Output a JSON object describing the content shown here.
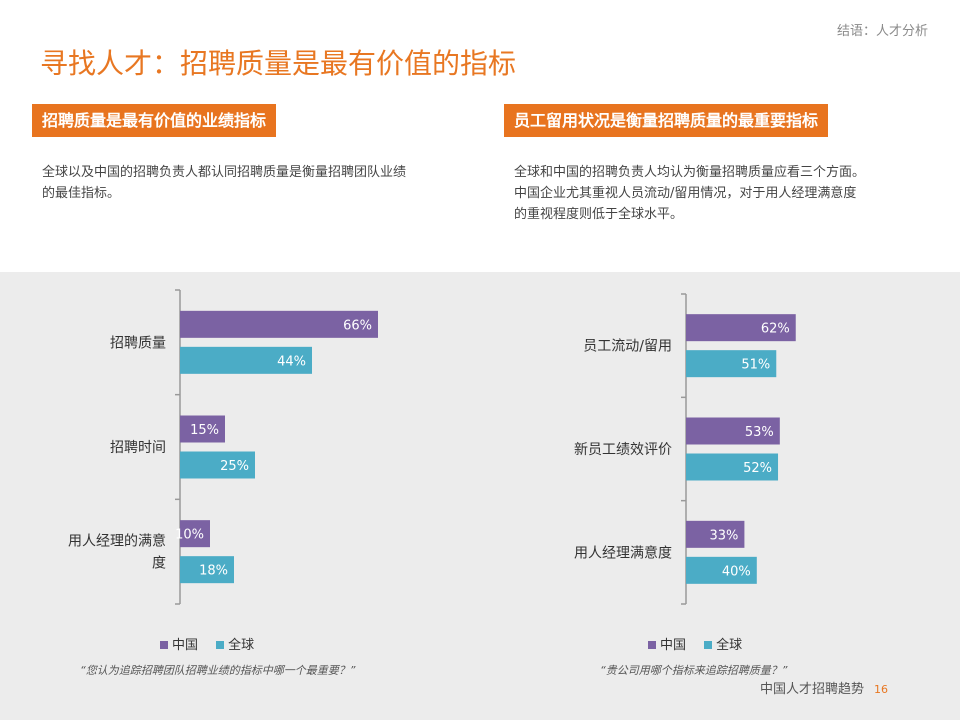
{
  "header": {
    "breadcrumb": "结语：人才分析",
    "title": "寻找人才：招聘质量是最有价值的指标"
  },
  "left": {
    "section_title": "招聘质量是最有价值的业绩指标",
    "desc_lines": [
      "全球以及中国的招聘负责人都认同招聘质量是衡量招聘团队业绩",
      "的最佳指标。"
    ],
    "note": "“您认为追踪招聘团队招聘业绩的指标中哪一个最重要？”"
  },
  "right": {
    "section_title": "员工留用状况是衡量招聘质量的最重要指标",
    "desc_lines": [
      "全球和中国的招聘负责人均认为衡量招聘质量应看三个方面。",
      "中国企业尤其重视人员流动/留用情况，对于用人经理满意度",
      "的重视程度则低于全球水平。"
    ],
    "note": "“贵公司用哪个指标来追踪招聘质量？”"
  },
  "legend": {
    "china": "中国",
    "global": "全球"
  },
  "colors": {
    "china": "#7b62a3",
    "global": "#4bacc6",
    "accent": "#e8741f"
  },
  "footer": {
    "text": "中国人才招聘趋势",
    "page": "16"
  },
  "chart_data": [
    {
      "type": "bar",
      "orientation": "horizontal",
      "categories": [
        [
          "招聘质量"
        ],
        [
          "招聘时间"
        ],
        [
          "用人经理的满意",
          "度"
        ]
      ],
      "series": [
        {
          "name": "中国",
          "values": [
            66,
            15,
            10
          ]
        },
        {
          "name": "全球",
          "values": [
            44,
            25,
            18
          ]
        }
      ],
      "value_labels": [
        [
          "66%",
          "15%",
          "10%"
        ],
        [
          "44%",
          "25%",
          "18%"
        ]
      ],
      "xlim": [
        0,
        100
      ],
      "legend": "bottom"
    },
    {
      "type": "bar",
      "orientation": "horizontal",
      "categories": [
        [
          "员工流动/留用"
        ],
        [
          "新员工绩效评价"
        ],
        [
          "用人经理满意度"
        ]
      ],
      "series": [
        {
          "name": "中国",
          "values": [
            62,
            53,
            33
          ]
        },
        {
          "name": "全球",
          "values": [
            51,
            52,
            40
          ]
        }
      ],
      "value_labels": [
        [
          "62%",
          "53%",
          "33%"
        ],
        [
          "51%",
          "52%",
          "40%"
        ]
      ],
      "xlim": [
        0,
        100
      ],
      "legend": "bottom"
    }
  ]
}
